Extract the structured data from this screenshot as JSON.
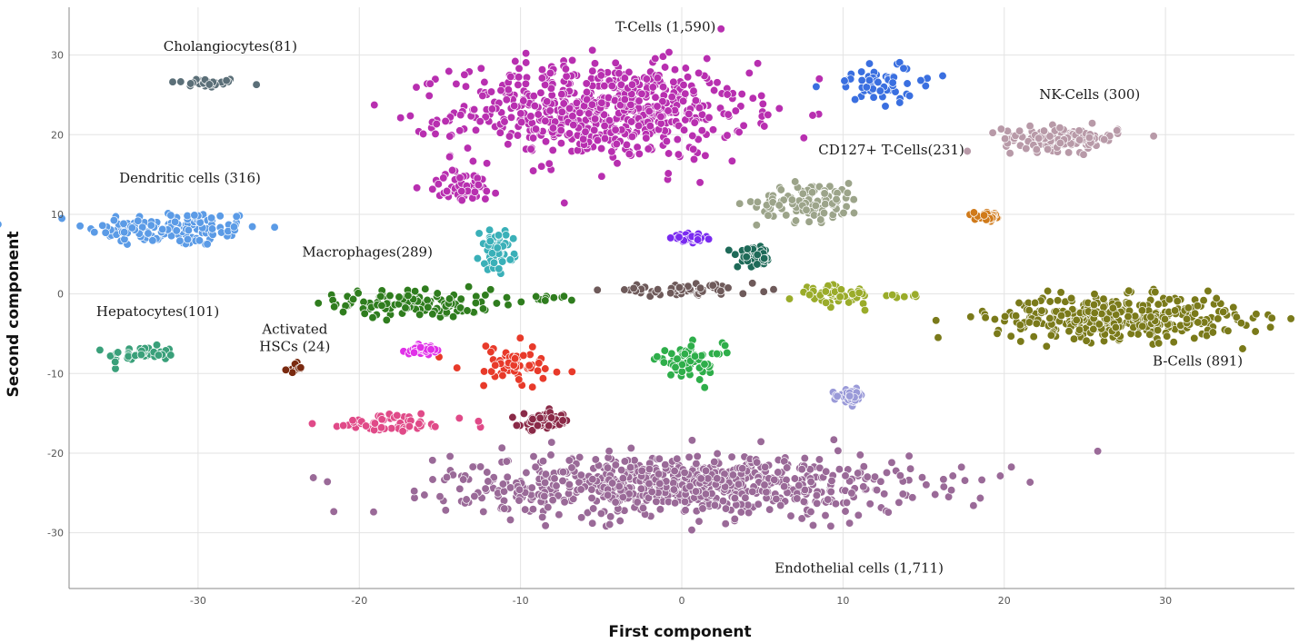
{
  "chart_data": {
    "type": "scatter",
    "title": "",
    "xlabel": "First component",
    "ylabel": "Second component",
    "xlim": [
      -38,
      38
    ],
    "ylim": [
      -37,
      36
    ],
    "xticks": [
      -30,
      -20,
      -10,
      0,
      10,
      20,
      30
    ],
    "yticks": [
      -30,
      -20,
      -10,
      0,
      10,
      20,
      30
    ],
    "grid": true,
    "legend": "none",
    "clusters": [
      {
        "name": "Cholangiocytes",
        "count": 81,
        "label": "Cholangiocytes(81)",
        "color": "#5b6f78",
        "blobs": [
          {
            "cx": -29.5,
            "cy": 26.5,
            "sx": 1.5,
            "sy": 0.4
          }
        ]
      },
      {
        "name": "Dendritic cells",
        "count": 316,
        "label": "Dendritic cells (316)",
        "color": "#5b9be6",
        "blobs": [
          {
            "cx": -31.5,
            "cy": 8.2,
            "sx": 3.6,
            "sy": 1.5
          }
        ]
      },
      {
        "name": "Hepatocytes",
        "count": 101,
        "label": "Hepatocytes(101)",
        "color": "#3aa07a",
        "blobs": [
          {
            "cx": -33.5,
            "cy": -7.5,
            "sx": 1.4,
            "sy": 0.6
          }
        ]
      },
      {
        "name": "Activated HSCs",
        "count": 24,
        "label": [
          "Activated",
          "HSCs (24)"
        ],
        "color": "#7a2a10",
        "blobs": [
          {
            "cx": -24.0,
            "cy": -9.3,
            "sx": 0.3,
            "sy": 0.4
          }
        ]
      },
      {
        "name": "Macrophages",
        "count": 289,
        "label": "Macrophages(289)",
        "color": "#2f7d1e",
        "blobs": [
          {
            "cx": -16.5,
            "cy": -1.2,
            "sx": 3.2,
            "sy": 1.2
          },
          {
            "cx": -8.5,
            "cy": -0.6,
            "sx": 1.2,
            "sy": 0.3
          }
        ]
      },
      {
        "name": "T-Cells",
        "count": 1590,
        "label": "T-Cells (1,590)",
        "color": "#b82fb0",
        "blobs": [
          {
            "cx": -5.0,
            "cy": 23.0,
            "sx": 6.0,
            "sy": 4.0
          },
          {
            "cx": -13.5,
            "cy": 13.5,
            "sx": 1.6,
            "sy": 1.3
          }
        ]
      },
      {
        "name": "CD127+ T-Cells",
        "count": 231,
        "label": "CD127+ T-Cells(231)",
        "color": "#9ca48a",
        "blobs": [
          {
            "cx": 8.0,
            "cy": 11.5,
            "sx": 2.2,
            "sy": 1.6
          }
        ]
      },
      {
        "name": "NK-Cells",
        "count": 300,
        "label": "NK-Cells (300)",
        "color": "#b89aa8",
        "blobs": [
          {
            "cx": 23.5,
            "cy": 19.5,
            "sx": 2.4,
            "sy": 1.0
          }
        ]
      },
      {
        "name": "B-Cells",
        "count": 891,
        "label": "B-Cells (891)",
        "color": "#7a7a1a",
        "blobs": [
          {
            "cx": 27.0,
            "cy": -3.0,
            "sx": 5.0,
            "sy": 1.8
          }
        ]
      },
      {
        "name": "Endothelial cells",
        "count": 1711,
        "label": "Endothelial cells (1,711)",
        "color": "#9a6a98",
        "blobs": [
          {
            "cx": 0.0,
            "cy": -24.0,
            "sx": 9.5,
            "sy": 2.6
          }
        ]
      },
      {
        "name": "",
        "count": 0,
        "label": "",
        "color": "#3a6fe0",
        "blobs": [
          {
            "cx": 12.5,
            "cy": 26.5,
            "sx": 2.2,
            "sy": 1.6
          }
        ]
      },
      {
        "name": "",
        "count": 0,
        "label": "",
        "color": "#3ab0b8",
        "blobs": [
          {
            "cx": -11.5,
            "cy": 5.5,
            "sx": 0.7,
            "sy": 1.6
          }
        ]
      },
      {
        "name": "",
        "count": 0,
        "label": "",
        "color": "#e83a2a",
        "blobs": [
          {
            "cx": -10.5,
            "cy": -9.0,
            "sx": 2.2,
            "sy": 1.8
          }
        ]
      },
      {
        "name": "",
        "count": 0,
        "label": "",
        "color": "#e04a88",
        "blobs": [
          {
            "cx": -18.0,
            "cy": -16.3,
            "sx": 3.0,
            "sy": 0.8
          }
        ]
      },
      {
        "name": "",
        "count": 0,
        "label": "",
        "color": "#2eae4a",
        "blobs": [
          {
            "cx": 0.5,
            "cy": -8.5,
            "sx": 1.4,
            "sy": 1.4
          }
        ]
      },
      {
        "name": "",
        "count": 0,
        "label": "",
        "color": "#6e5a5a",
        "blobs": [
          {
            "cx": 0.0,
            "cy": 0.5,
            "sx": 3.2,
            "sy": 0.4
          }
        ]
      },
      {
        "name": "",
        "count": 0,
        "label": "",
        "color": "#9aac2a",
        "blobs": [
          {
            "cx": 9.5,
            "cy": 0.0,
            "sx": 1.5,
            "sy": 0.8
          },
          {
            "cx": 13.5,
            "cy": -0.3,
            "sx": 0.9,
            "sy": 0.2
          }
        ]
      },
      {
        "name": "",
        "count": 0,
        "label": "",
        "color": "#1e6a58",
        "blobs": [
          {
            "cx": 4.5,
            "cy": 4.5,
            "sx": 0.7,
            "sy": 0.8
          }
        ]
      },
      {
        "name": "",
        "count": 0,
        "label": "",
        "color": "#8a2a48",
        "blobs": [
          {
            "cx": -8.5,
            "cy": -16.0,
            "sx": 1.0,
            "sy": 0.7
          }
        ]
      },
      {
        "name": "",
        "count": 0,
        "label": "",
        "color": "#d07a1a",
        "blobs": [
          {
            "cx": 19.0,
            "cy": 9.7,
            "sx": 0.6,
            "sy": 0.3
          }
        ]
      },
      {
        "name": "",
        "count": 0,
        "label": "",
        "color": "#9a9ad8",
        "blobs": [
          {
            "cx": 10.5,
            "cy": -12.8,
            "sx": 0.5,
            "sy": 0.5
          }
        ]
      },
      {
        "name": "",
        "count": 0,
        "label": "",
        "color": "#7a2af0",
        "blobs": [
          {
            "cx": 0.5,
            "cy": 7.0,
            "sx": 0.6,
            "sy": 0.3
          }
        ]
      },
      {
        "name": "",
        "count": 0,
        "label": "",
        "color": "#e030e8",
        "blobs": [
          {
            "cx": -16.0,
            "cy": -7.0,
            "sx": 0.5,
            "sy": 0.3
          }
        ]
      }
    ]
  }
}
